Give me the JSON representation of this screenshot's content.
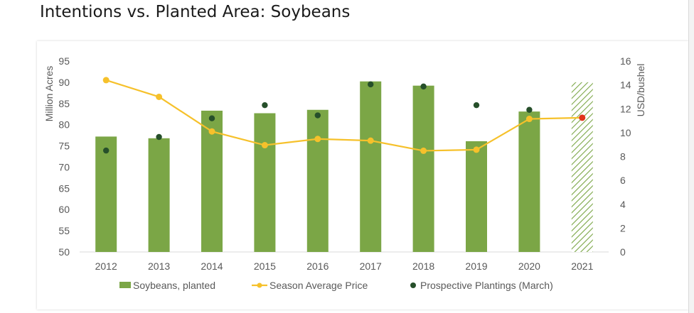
{
  "title": "Intentions vs. Planted Area: Soybeans",
  "chart_data": {
    "type": "bar",
    "categories": [
      "2012",
      "2013",
      "2014",
      "2015",
      "2016",
      "2017",
      "2018",
      "2019",
      "2020",
      "2021"
    ],
    "series": [
      {
        "name": "Soybeans, planted",
        "kind": "bar",
        "axis": "left",
        "color": "#7ba646",
        "values": [
          77.2,
          76.8,
          83.3,
          82.7,
          83.5,
          90.2,
          89.2,
          76.1,
          83.1,
          90.0
        ],
        "hatched_last": true
      },
      {
        "name": "Season Average Price",
        "kind": "line",
        "axis": "right",
        "color": "#f6c12b",
        "values": [
          14.4,
          13.0,
          10.1,
          8.95,
          9.47,
          9.33,
          8.48,
          8.57,
          11.15,
          11.25
        ],
        "last_point_color": "#e0321b"
      },
      {
        "name": "Prospective Plantings (March)",
        "kind": "point",
        "axis": "left",
        "color": "#264f2a",
        "values": [
          73.9,
          77.1,
          81.5,
          84.6,
          82.2,
          89.5,
          89.0,
          84.6,
          83.5,
          null
        ]
      }
    ],
    "ylabel": "Million Acres",
    "ylim": [
      50,
      95
    ],
    "yticks": [
      "50",
      "55",
      "60",
      "65",
      "70",
      "75",
      "80",
      "85",
      "90",
      "95"
    ],
    "y2label": "USD/bushel",
    "y2lim": [
      0,
      16
    ],
    "y2ticks": [
      "0",
      "2",
      "4",
      "6",
      "8",
      "10",
      "12",
      "14",
      "16"
    ],
    "grid": false,
    "legend": "bottom"
  }
}
